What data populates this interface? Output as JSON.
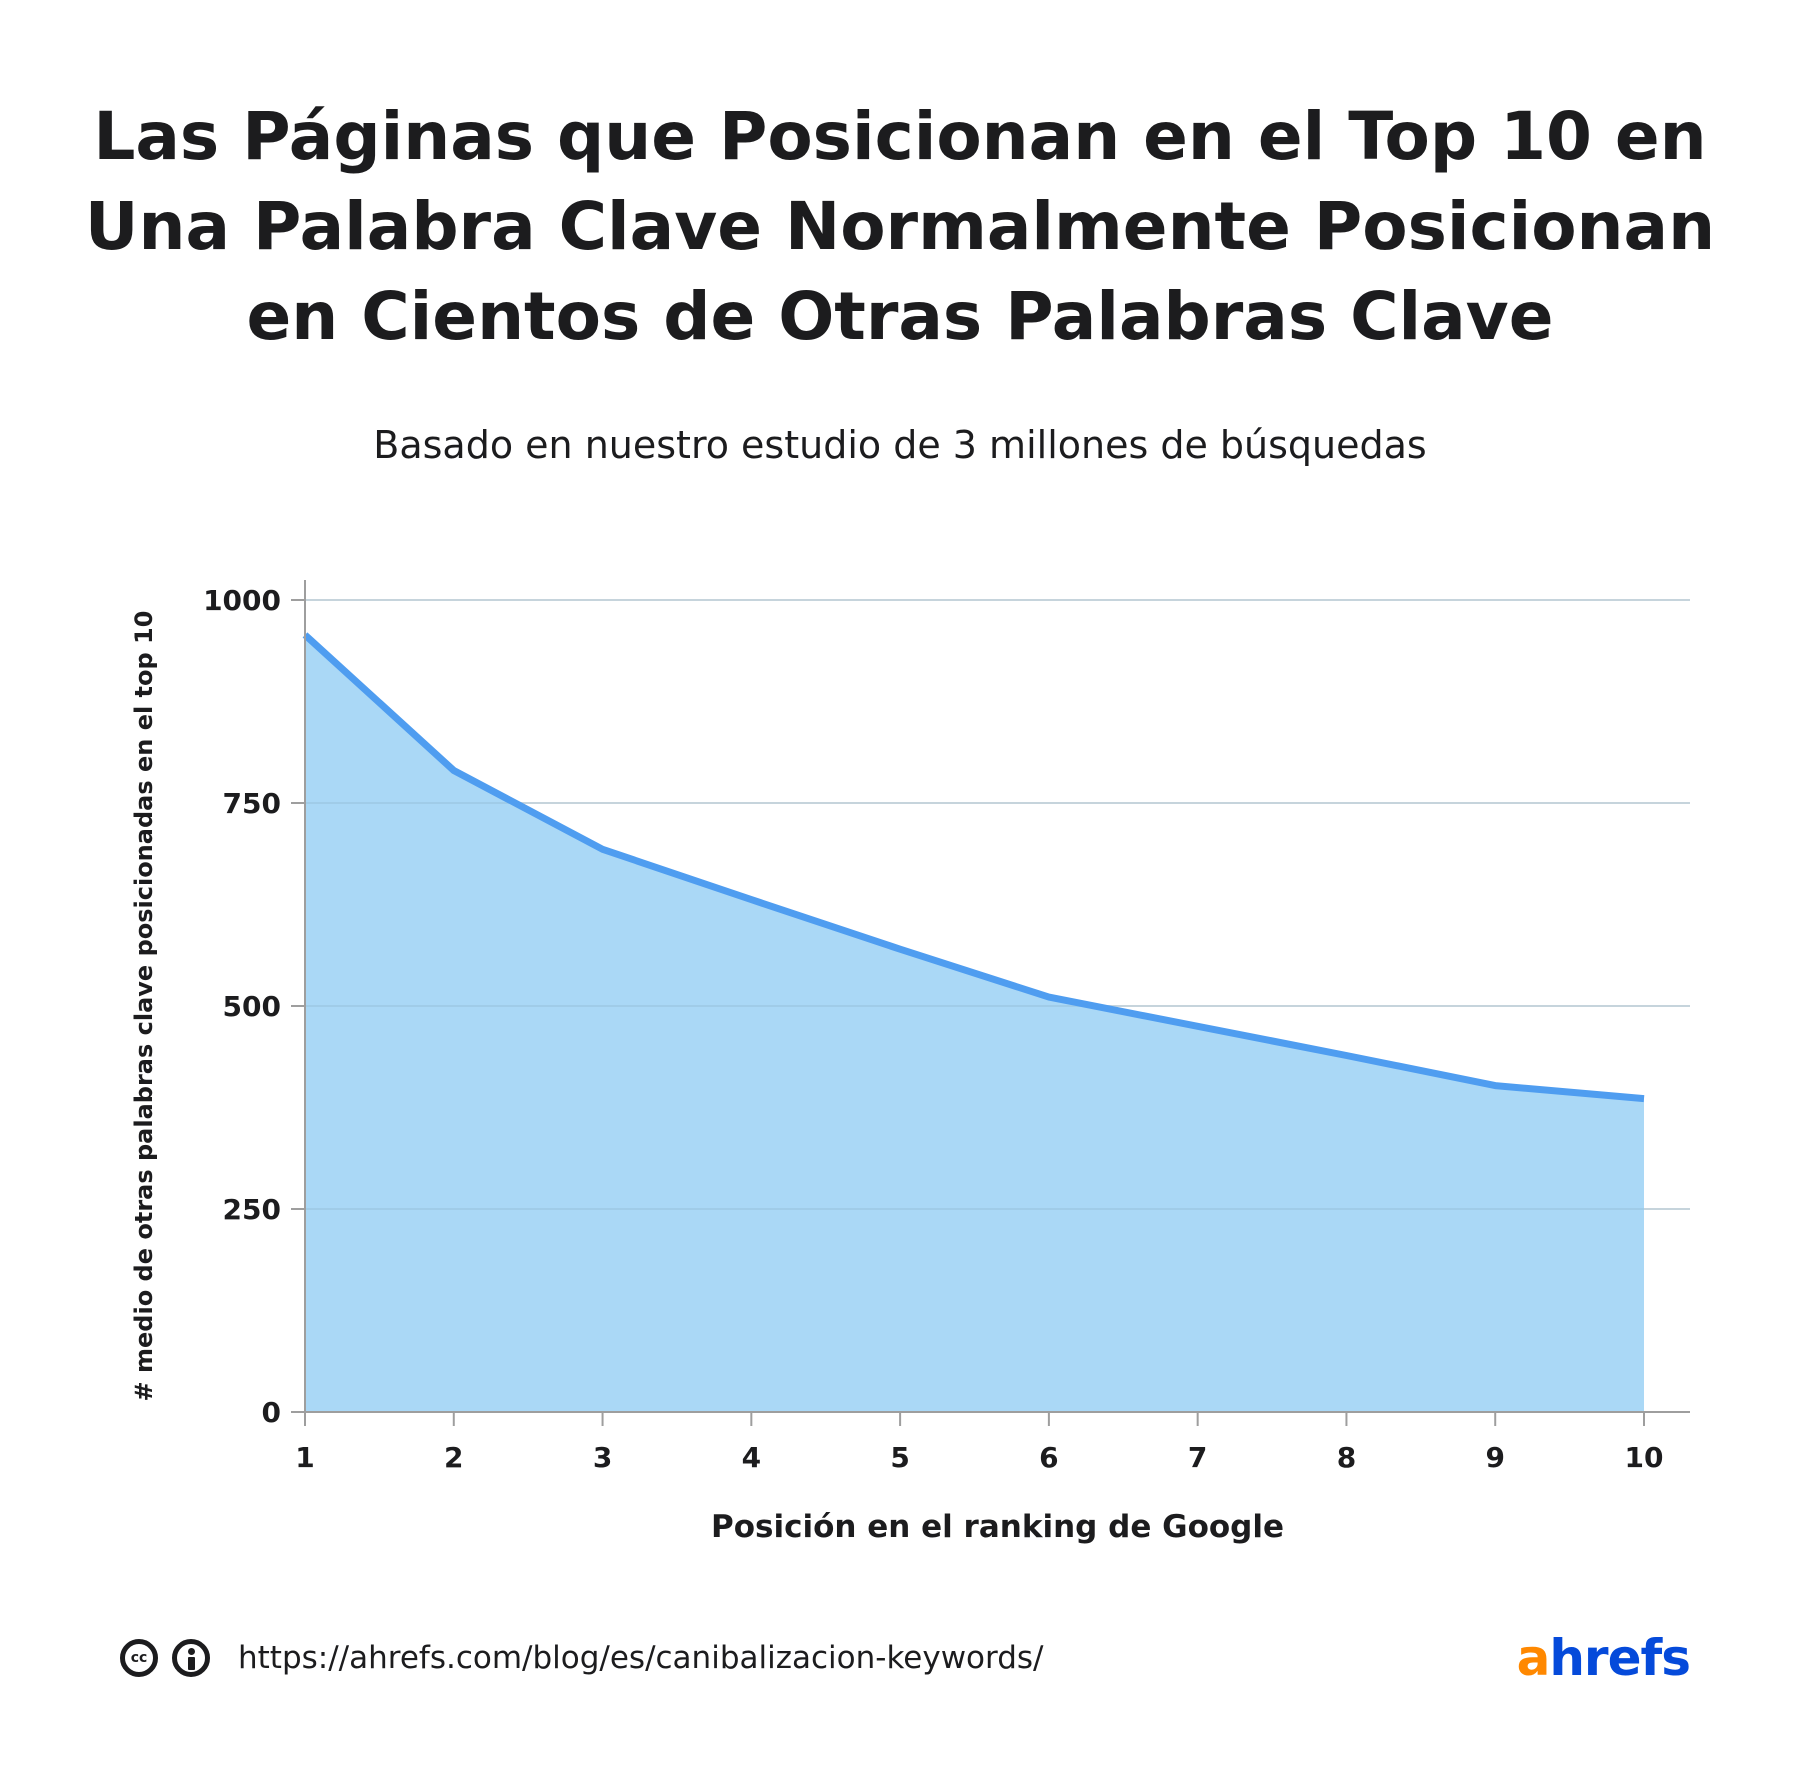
{
  "title_lines": [
    "Las Páginas que Posicionan en el Top 10 en",
    "Una Palabra Clave Normalmente Posicionan",
    "en Cientos de Otras Palabras Clave"
  ],
  "subtitle": "Basado en nuestro estudio de 3 millones de búsquedas",
  "chart_data": {
    "type": "area",
    "x": [
      1,
      2,
      3,
      4,
      5,
      6,
      7,
      8,
      9,
      10
    ],
    "values": [
      957,
      790,
      693,
      631,
      570,
      511,
      475,
      439,
      402,
      386
    ],
    "xlabel": "Posición en el ranking de Google",
    "ylabel": "# medio de otras palabras clave posicionadas en el top 10",
    "xlim": [
      1,
      10
    ],
    "ylim": [
      0,
      1000
    ],
    "yticks": [
      0,
      250,
      500,
      750,
      1000
    ],
    "xticks": [
      1,
      2,
      3,
      4,
      5,
      6,
      7,
      8,
      9,
      10
    ],
    "grid": "horizontal",
    "colors": {
      "line": "#4f9df0",
      "fill": "#aad8f6",
      "grid": "#e4e4e4",
      "axis": "#9e9e9e"
    }
  },
  "footer": {
    "license_icons": [
      "creative-commons-icon",
      "attribution-icon"
    ],
    "cc_text": "cc",
    "url": "https://ahrefs.com/blog/es/canibalizacion-keywords/"
  },
  "logo": {
    "first_letter": "a",
    "rest": "hrefs",
    "colors": {
      "first_letter": "#ff8800",
      "rest": "#054ada"
    }
  }
}
